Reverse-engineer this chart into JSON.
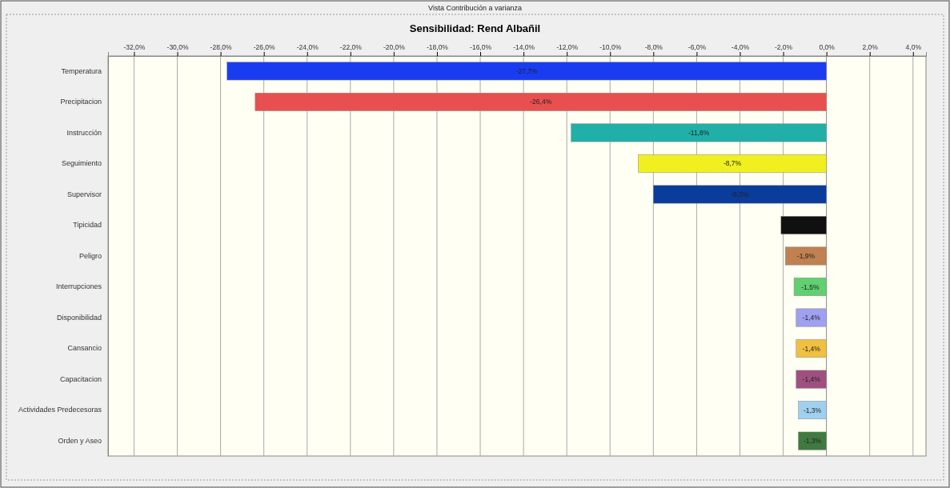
{
  "chart_data": {
    "type": "bar",
    "orientation": "horizontal",
    "title": "Sensibilidad: Rend Albañil",
    "annotations": [
      "Vista Contribución a varianza"
    ],
    "categories": [
      "Temperatura",
      "Precipitacion",
      "Instrucción",
      "Seguimiento",
      "Supervisor",
      "Tipicidad",
      "Peligro",
      "Interrupciones",
      "Disponibilidad",
      "Cansancio",
      "Capacitacion",
      "Actividades Predecesoras",
      "Orden y Aseo"
    ],
    "values": [
      -27.7,
      -26.4,
      -11.8,
      -8.7,
      -8.0,
      -2.1,
      -1.9,
      -1.5,
      -1.4,
      -1.4,
      -1.4,
      -1.3,
      -1.3
    ],
    "value_labels": [
      "-27,7%",
      "-26,4%",
      "-11,8%",
      "-8,7%",
      "-8,0%",
      null,
      "-1,9%",
      "-1,5%",
      "-1,4%",
      "-1,4%",
      "-1,4%",
      "-1,3%",
      "-1,3%"
    ],
    "colors": [
      "#1a3cf0",
      "#e85050",
      "#20b0a8",
      "#f0f020",
      "#0a3c9c",
      "#101010",
      "#c08050",
      "#60d070",
      "#a0a0f0",
      "#f0c040",
      "#a05080",
      "#a0d0f0",
      "#407a40"
    ],
    "xlim": [
      -33.2,
      4.6
    ],
    "xticks": [
      {
        "value": -32,
        "label": "-32,0%"
      },
      {
        "value": -30,
        "label": "-30,0%"
      },
      {
        "value": -28,
        "label": "-28,0%"
      },
      {
        "value": -26,
        "label": "-26,0%"
      },
      {
        "value": -24,
        "label": "-24,0%"
      },
      {
        "value": -22,
        "label": "-22,0%"
      },
      {
        "value": -20,
        "label": "-20,0%"
      },
      {
        "value": -18,
        "label": "-18,0%"
      },
      {
        "value": -16,
        "label": "-16,0%"
      },
      {
        "value": -14,
        "label": "-14,0%"
      },
      {
        "value": -12,
        "label": "-12,0%"
      },
      {
        "value": -10,
        "label": "-10,0%"
      },
      {
        "value": -8,
        "label": "-8,0%"
      },
      {
        "value": -6,
        "label": "-6,0%"
      },
      {
        "value": -4,
        "label": "-4,0%"
      },
      {
        "value": -2,
        "label": "-2,0%"
      },
      {
        "value": 0,
        "label": "0,0%"
      },
      {
        "value": 2,
        "label": "2,0%"
      },
      {
        "value": 4,
        "label": "4,0%"
      }
    ],
    "grid": "x"
  }
}
